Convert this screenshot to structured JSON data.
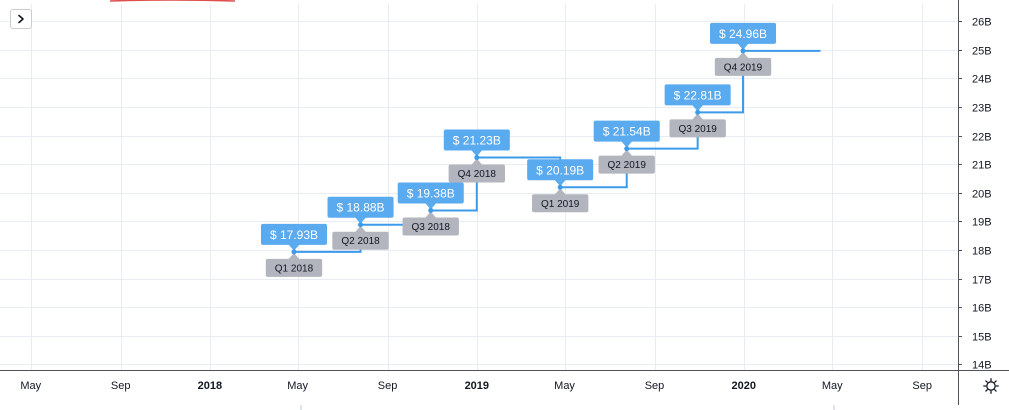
{
  "chart_data": {
    "type": "line",
    "step": true,
    "y_unit_suffix": "B",
    "ylim": [
      13.8,
      26.6
    ],
    "y_ticks": [
      14,
      15,
      16,
      17,
      18,
      19,
      20,
      21,
      22,
      23,
      24,
      25,
      26
    ],
    "y_tick_labels": [
      "14B",
      "15B",
      "16B",
      "17B",
      "18B",
      "19B",
      "20B",
      "21B",
      "22B",
      "23B",
      "24B",
      "25B",
      "26B"
    ],
    "xlim": [
      "2017-03-20",
      "2020-10-20"
    ],
    "x_ticks": [
      {
        "date": "2017-05-01",
        "label": "May",
        "bold": false
      },
      {
        "date": "2017-09-01",
        "label": "Sep",
        "bold": false
      },
      {
        "date": "2018-01-01",
        "label": "2018",
        "bold": true
      },
      {
        "date": "2018-05-01",
        "label": "May",
        "bold": false
      },
      {
        "date": "2018-09-01",
        "label": "Sep",
        "bold": false
      },
      {
        "date": "2019-01-01",
        "label": "2019",
        "bold": true
      },
      {
        "date": "2019-05-01",
        "label": "May",
        "bold": false
      },
      {
        "date": "2019-09-01",
        "label": "Sep",
        "bold": false
      },
      {
        "date": "2020-01-01",
        "label": "2020",
        "bold": true
      },
      {
        "date": "2020-05-01",
        "label": "May",
        "bold": false
      },
      {
        "date": "2020-09-01",
        "label": "Sep",
        "bold": false
      }
    ],
    "line_end_date": "2020-04-15",
    "grid": true,
    "points": [
      {
        "date": "2018-04-26",
        "value": 17.93,
        "value_label": "$ 17.93B",
        "period": "Q1 2018"
      },
      {
        "date": "2018-07-26",
        "value": 18.88,
        "value_label": "$ 18.88B",
        "period": "Q2 2018"
      },
      {
        "date": "2018-10-30",
        "value": 19.38,
        "value_label": "$ 19.38B",
        "period": "Q3 2018"
      },
      {
        "date": "2019-01-01",
        "value": 21.23,
        "value_label": "$ 21.23B",
        "period": "Q4 2018"
      },
      {
        "date": "2019-04-25",
        "value": 20.19,
        "value_label": "$ 20.19B",
        "period": "Q1 2019"
      },
      {
        "date": "2019-07-25",
        "value": 21.54,
        "value_label": "$ 21.54B",
        "period": "Q2 2019"
      },
      {
        "date": "2019-10-30",
        "value": 22.81,
        "value_label": "$ 22.81B",
        "period": "Q3 2019"
      },
      {
        "date": "2019-12-31",
        "value": 24.96,
        "value_label": "$ 24.96B",
        "period": "Q4 2019"
      }
    ]
  },
  "colors": {
    "line": "#3d9be9",
    "value_badge": "#5aaaf0",
    "period_badge": "#b2b5be",
    "grid": "#e8edf3",
    "axis_text": "#131722",
    "accent_red": "#e04e4e"
  },
  "controls": {
    "toggle_icon": "chevron-right-icon",
    "settings_icon": "gear-icon"
  }
}
